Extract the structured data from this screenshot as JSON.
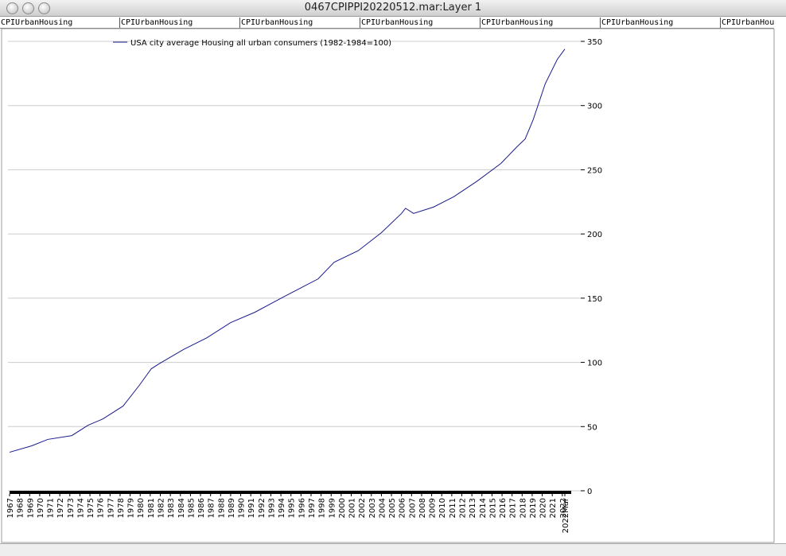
{
  "window": {
    "title": "0467CPIPPI20220512.mar:Layer 1"
  },
  "tabs": [
    "CPIUrbanHousing",
    "CPIUrbanHousing",
    "CPIUrbanHousing",
    "CPIUrbanHousing",
    "CPIUrbanHousing",
    "CPIUrbanHousing",
    "CPIUrbanHousing"
  ],
  "chart_data": {
    "type": "line",
    "x": [
      1967,
      1969.2,
      1970.8,
      1973.2,
      1974.8,
      1976.3,
      1978.3,
      1979.9,
      1981.1,
      1981.9,
      1984.3,
      1986.6,
      1989,
      1991.4,
      1994.5,
      1997.7,
      1999.3,
      2001.7,
      2004,
      2006,
      2006.4,
      2007.2,
      2009.2,
      2011.2,
      2013.5,
      2015.9,
      2017.5,
      2018.3,
      2019.1,
      2020.3,
      2021.5,
      2022.25
    ],
    "series": [
      {
        "name": "USA city average Housing all urban consumers (1982-1984=100)",
        "color": "#1a1a8c",
        "values": [
          30,
          35,
          40,
          43,
          51,
          56,
          66,
          82,
          95,
          99,
          110,
          119,
          131,
          139,
          152,
          165,
          178,
          187,
          201,
          216,
          220,
          216,
          221,
          229,
          241,
          255,
          268,
          274,
          289,
          317,
          336,
          344
        ]
      }
    ],
    "xlim": [
      1967,
      2022.25
    ],
    "xticks": [
      1967,
      1968,
      1969,
      1970,
      1971,
      1972,
      1973,
      1974,
      1975,
      1976,
      1977,
      1978,
      1979,
      1980,
      1981,
      1982,
      1983,
      1984,
      1985,
      1986,
      1987,
      1988,
      1989,
      1990,
      1991,
      1992,
      1993,
      1994,
      1995,
      1996,
      1997,
      1998,
      1999,
      2000,
      2001,
      2002,
      2003,
      2004,
      2005,
      2006,
      2007,
      2008,
      2009,
      2010,
      2011,
      2012,
      2013,
      2014,
      2015,
      2016,
      2017,
      2018,
      2019,
      2020,
      2021,
      2022,
      {
        "value": 2022.25,
        "label": "2022Mar"
      }
    ],
    "ylim": [
      0,
      350
    ],
    "yticks": [
      0,
      50,
      100,
      150,
      200,
      250,
      300,
      350
    ],
    "grid": true,
    "legend": "top-left"
  }
}
